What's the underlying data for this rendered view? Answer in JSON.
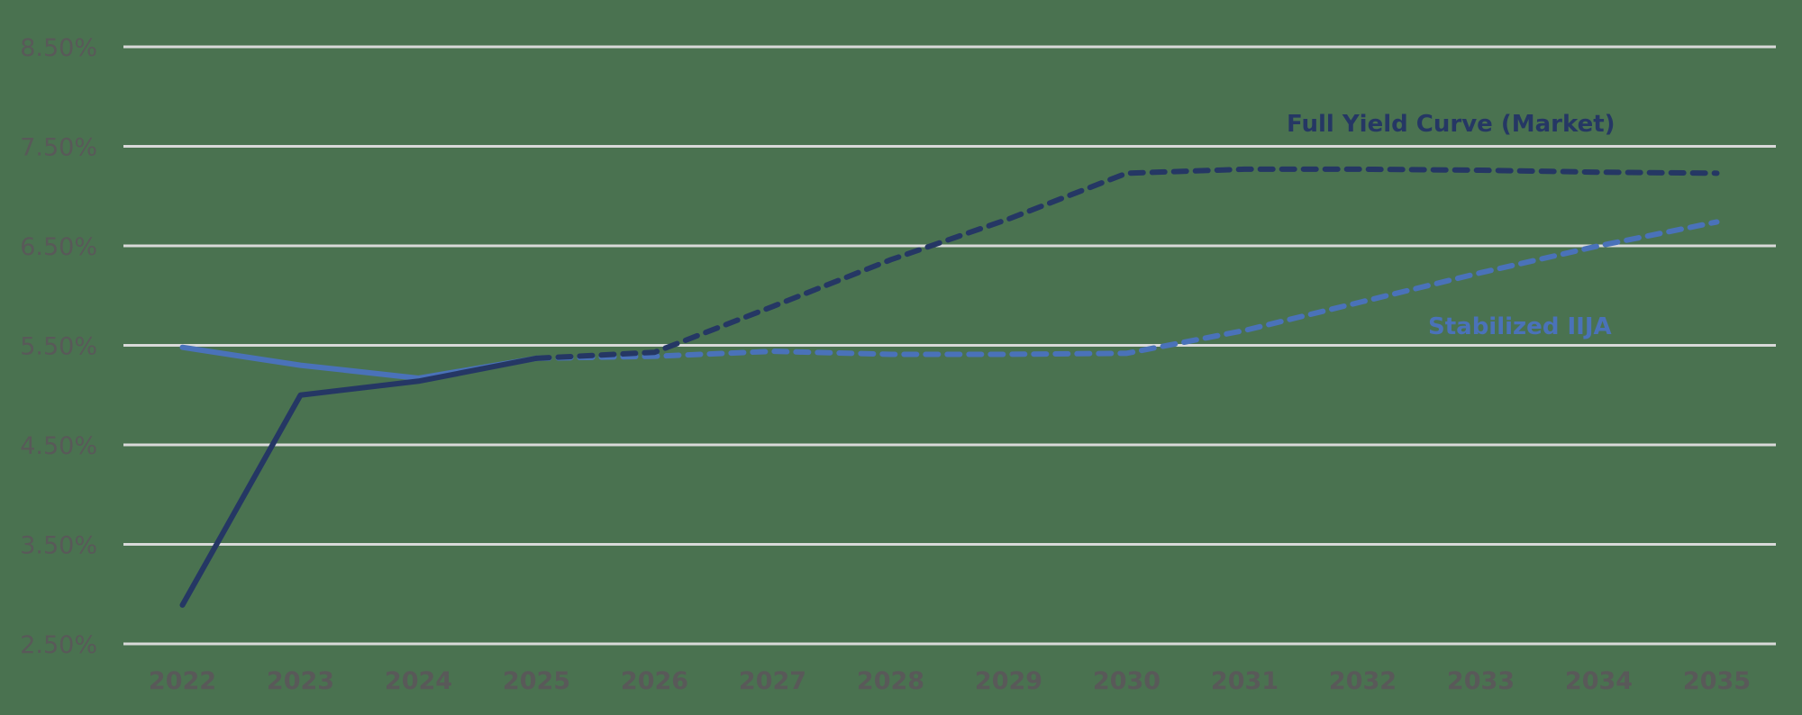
{
  "chart_data": {
    "type": "line",
    "title": "",
    "xlabel": "",
    "ylabel": "",
    "categories": [
      "2022",
      "2023",
      "2024",
      "2025",
      "2026",
      "2027",
      "2028",
      "2029",
      "2030",
      "2031",
      "2032",
      "2033",
      "2034",
      "2035"
    ],
    "y_ticks": [
      "2.50%",
      "3.50%",
      "4.50%",
      "5.50%",
      "6.50%",
      "7.50%",
      "8.50%"
    ],
    "ylim": [
      2.5,
      8.5
    ],
    "grid": true,
    "legend": "inline annotations",
    "series": [
      {
        "name": "Full Yield Curve (Market)",
        "color": "#253764",
        "style": "solid 2022-2025, dashed 2025-2035",
        "values": [
          2.89,
          5.0,
          5.14,
          5.37,
          5.43,
          5.89,
          6.36,
          6.77,
          7.23,
          7.27,
          7.27,
          7.26,
          7.24,
          7.23
        ]
      },
      {
        "name": "Stabilized IIJA",
        "color": "#4a72b9",
        "style": "solid 2022-2025, dashed 2025-2035",
        "values": [
          5.48,
          5.3,
          5.17,
          5.37,
          5.39,
          5.44,
          5.41,
          5.41,
          5.42,
          5.65,
          5.94,
          6.23,
          6.5,
          6.74
        ]
      }
    ],
    "annotations": [
      {
        "text": "Full Yield Curve (Market)",
        "series": 0
      },
      {
        "text": "Stabilized IIJA",
        "series": 1
      }
    ]
  },
  "colors": {
    "background": "#4a7250",
    "gridline": "#d9d9d9",
    "label": "#595959"
  }
}
